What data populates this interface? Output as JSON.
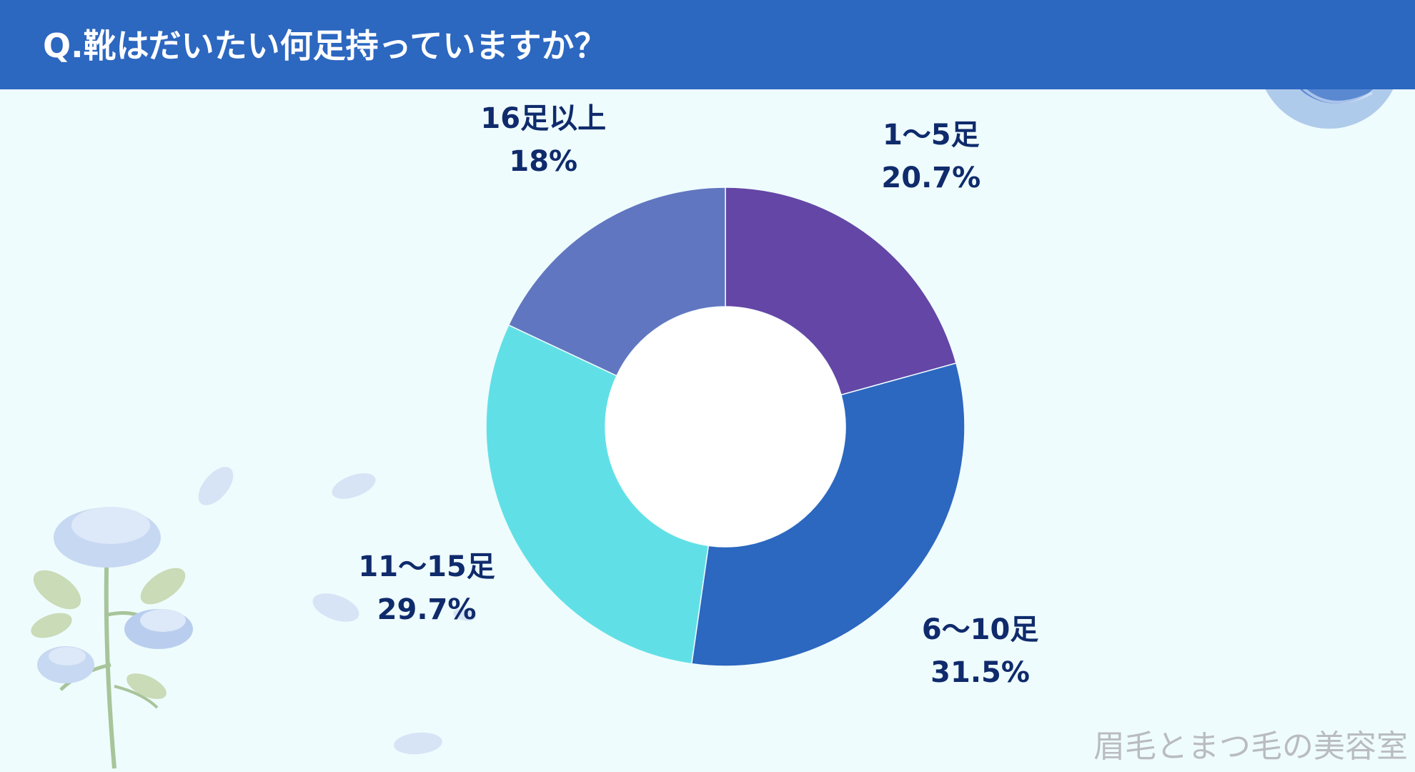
{
  "header": {
    "title": "Q.靴はだいたい何足持っていますか？"
  },
  "watermark": "眉毛とまつ毛の美容室",
  "colors": {
    "header": "#2c67c0",
    "background": "#effcfd",
    "label_text": "#0f2b6c"
  },
  "chart_data": {
    "type": "pie",
    "donut": true,
    "title": "",
    "start_angle_deg": 0,
    "direction": "clockwise",
    "slices": [
      {
        "label": "1～5足",
        "value": 20.7,
        "value_label": "20.7%",
        "color": "#6446a6"
      },
      {
        "label": "6～10足",
        "value": 31.5,
        "value_label": "31.5%",
        "color": "#2c67c0"
      },
      {
        "label": "11～15足",
        "value": 29.7,
        "value_label": "29.7%",
        "color": "#60e0e6"
      },
      {
        "label": "16足以上",
        "value": 18,
        "value_label": "18%",
        "color": "#6176c0"
      }
    ]
  }
}
